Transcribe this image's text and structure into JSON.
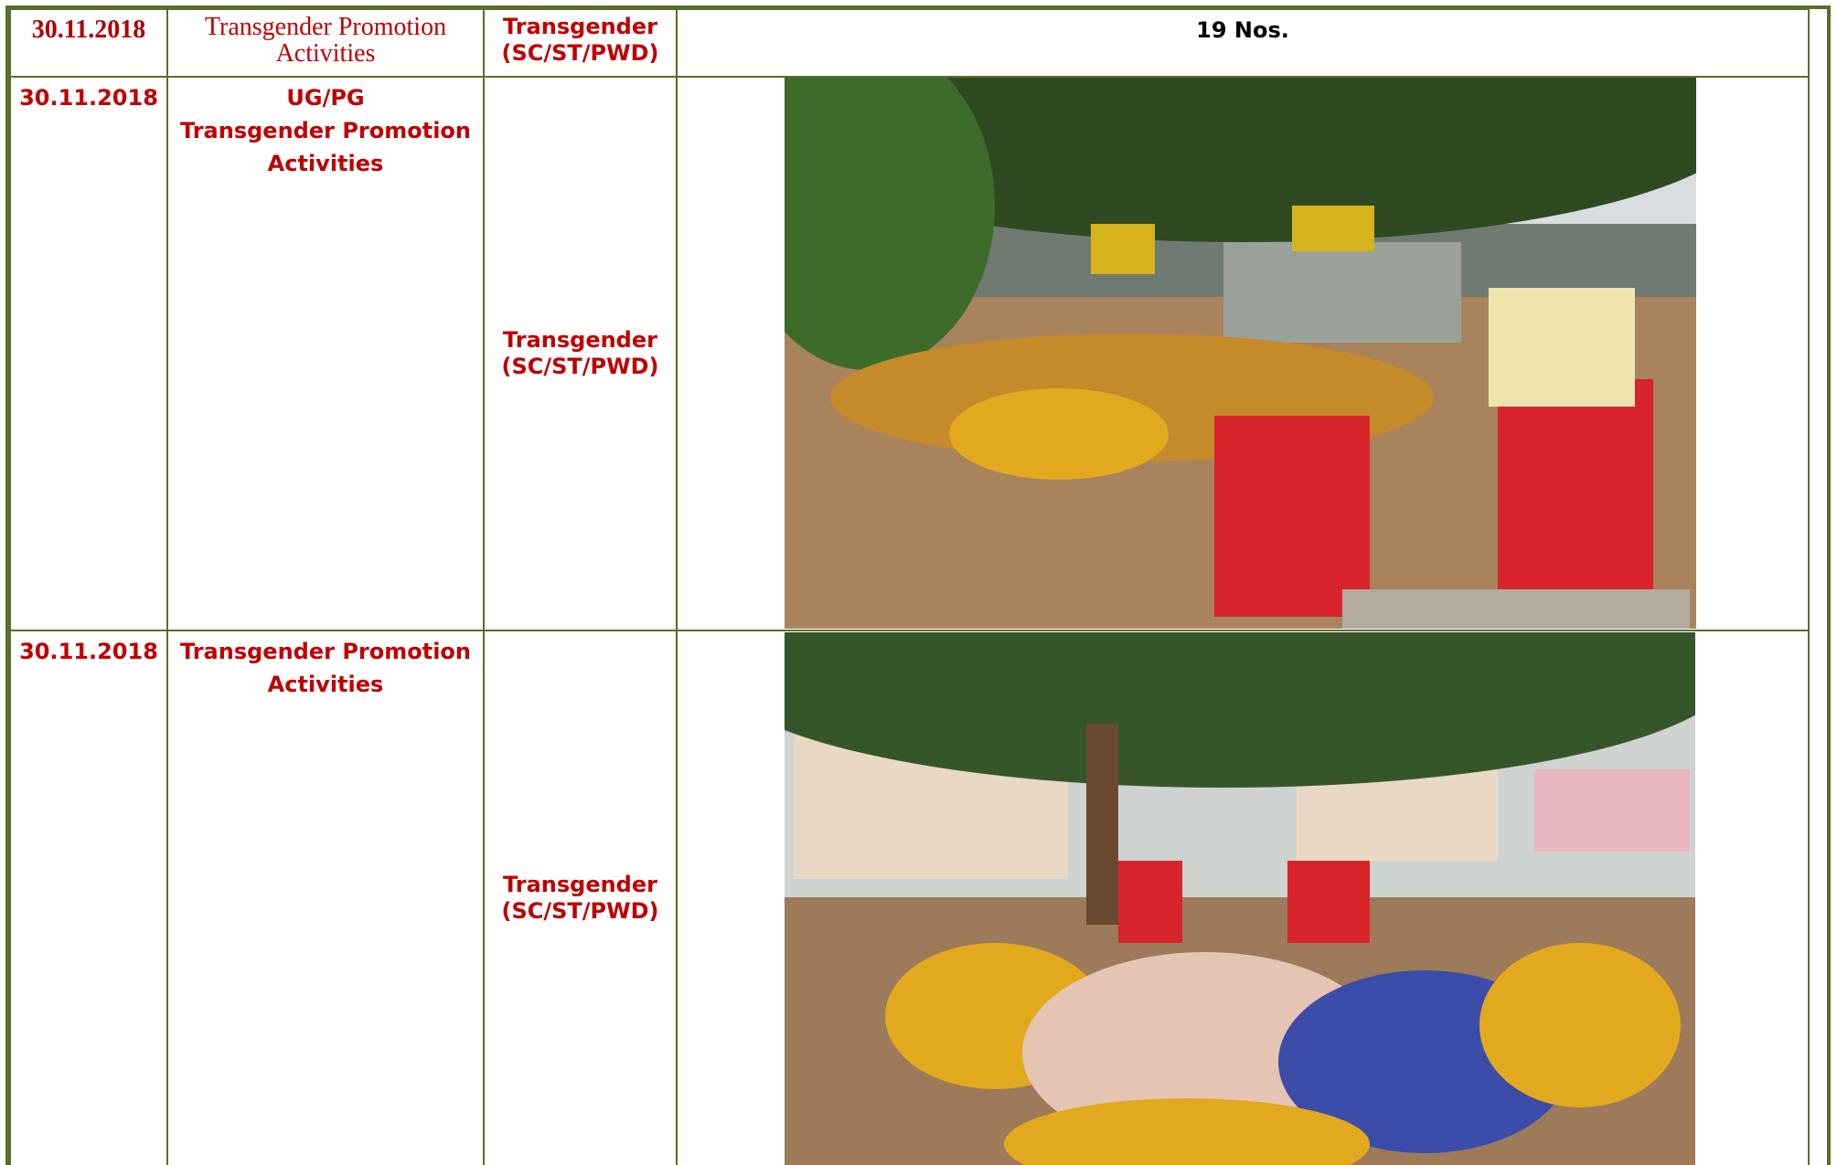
{
  "table": {
    "rows": [
      {
        "date": "30.11.2018",
        "activity": [
          "Transgender Promotion Activities"
        ],
        "category": "Transgender (SC/ST/PWD)",
        "details": "19 Nos."
      },
      {
        "date": "30.11.2018",
        "activity": [
          "UG/PG",
          "Transgender Promotion Activities"
        ],
        "category": "Transgender (SC/ST/PWD)"
      },
      {
        "date": "30.11.2018",
        "activity": [
          "Transgender Promotion Activities"
        ],
        "category": "Transgender (SC/ST/PWD)"
      }
    ]
  }
}
